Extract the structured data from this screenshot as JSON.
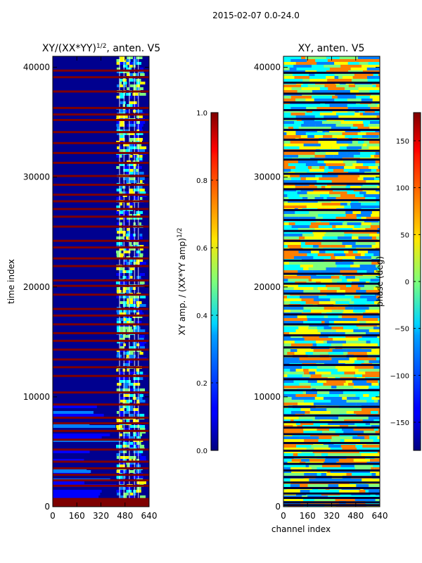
{
  "figure": {
    "suptitle": "2015-02-07 0.0-24.0",
    "ylabel": "time index",
    "xlabel": "channel index"
  },
  "colors": {
    "jet": [
      "#00007f",
      "#0000ff",
      "#007fff",
      "#00ffff",
      "#7fff7f",
      "#ffff00",
      "#ff7f00",
      "#ff0000",
      "#7f0000"
    ]
  },
  "chart_data": [
    {
      "type": "heatmap",
      "title_base": "XY/(XX*YY)",
      "title_exp": "1/2",
      "title_suffix": ", anten. V5",
      "xlabel": "",
      "ylabel": "time index",
      "xlim": [
        0,
        640
      ],
      "ylim": [
        0,
        41000
      ],
      "xticks": [
        0,
        160,
        320,
        480,
        640
      ],
      "yticks": [
        0,
        10000,
        20000,
        30000,
        40000
      ],
      "colorbar": {
        "label_base": "XY amp. / (XX*YY amp)",
        "label_exp": "1/2",
        "range": [
          0.0,
          1.0
        ],
        "ticks": [
          "0.0",
          "0.2",
          "0.4",
          "0.6",
          "0.8",
          "1.0"
        ]
      },
      "saturated_rows": [
        400,
        700,
        1900,
        2400,
        2900,
        3500,
        4100,
        5200,
        6100,
        6900,
        7600,
        8100,
        9300,
        10400,
        11900,
        12700,
        13400,
        14300,
        15100,
        15800,
        16600,
        17400,
        18000,
        19300,
        20100,
        20600,
        21900,
        22600,
        23600,
        24200,
        25500,
        26400,
        27100,
        27800,
        28400,
        29300,
        30100,
        31300,
        32200,
        33100,
        34100,
        35200,
        35700,
        36300,
        37800,
        39100,
        39700
      ]
    },
    {
      "type": "heatmap",
      "title": "XY, anten. V5",
      "xlabel": "channel index",
      "ylabel": "",
      "xlim": [
        0,
        640
      ],
      "ylim": [
        0,
        41000
      ],
      "xticks": [
        0,
        160,
        320,
        480,
        640
      ],
      "yticks": [
        0,
        10000,
        20000,
        30000,
        40000
      ],
      "colorbar": {
        "label": "phase (deg)",
        "range": [
          -180,
          180
        ],
        "ticks": [
          -150,
          -100,
          -50,
          0,
          50,
          100,
          150
        ]
      },
      "blank_rows": [
        150,
        400,
        800,
        1200,
        1700,
        2200,
        2700,
        3300,
        3900,
        4500,
        5100,
        5800,
        6600,
        7200,
        7700,
        8300,
        9100,
        10600,
        11600,
        12900,
        13700,
        14500,
        15600,
        16600,
        17500,
        18300,
        19400,
        20300,
        21200,
        22400,
        23400,
        24200,
        25100,
        26100,
        27000,
        27900,
        28900,
        29400,
        30300,
        31600,
        32400,
        33400,
        34300,
        35300,
        36100,
        36800,
        37600,
        38600,
        39500
      ]
    }
  ]
}
